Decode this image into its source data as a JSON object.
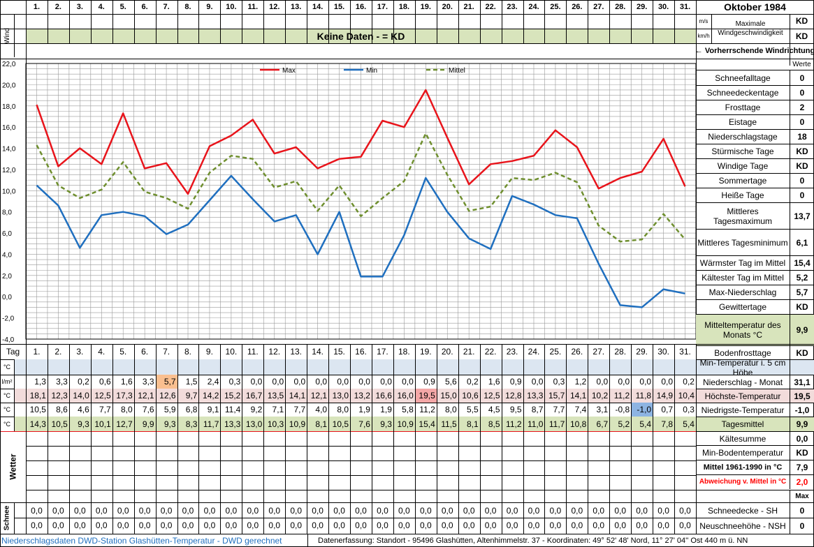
{
  "title": "Oktober 1984",
  "days": [
    "1.",
    "2.",
    "3.",
    "4.",
    "5.",
    "6.",
    "7.",
    "8.",
    "9.",
    "10.",
    "11.",
    "12.",
    "13.",
    "14.",
    "15.",
    "16.",
    "17.",
    "18.",
    "19.",
    "20.",
    "21.",
    "22.",
    "23.",
    "24.",
    "25.",
    "26.",
    "27.",
    "28.",
    "29.",
    "30.",
    "31."
  ],
  "wind": {
    "label": "Wind",
    "unit_ms": "m/s",
    "unit_kmh": "km/h",
    "banner": "Keine Daten -  = KD",
    "max_label": "Maximale Windgeschwindigkeit",
    "max_ms": "KD",
    "max_kmh": "KD",
    "direction_label": "← Vorherrschende Windrichtung"
  },
  "werte_label": "Werte",
  "tag_label": "Tag",
  "summary": [
    {
      "label": "Schneefalltage",
      "value": "0"
    },
    {
      "label": "Schneedeckentage",
      "value": "0"
    },
    {
      "label": "Frosttage",
      "value": "2"
    },
    {
      "label": "Eistage",
      "value": "0"
    },
    {
      "label": "Niederschlagstage",
      "value": "18"
    },
    {
      "label": "Stürmische Tage",
      "value": "KD"
    },
    {
      "label": "Windige Tage",
      "value": "KD"
    },
    {
      "label": "Sommertage",
      "value": "0"
    },
    {
      "label": "Heiße Tage",
      "value": "0"
    },
    {
      "label": "Mittleres Tagesmaximum",
      "value": "13,7"
    },
    {
      "label": "Mittleres Tagesminimum",
      "value": "6,1"
    },
    {
      "label": "Wärmster Tag im Mittel",
      "value": "15,4"
    },
    {
      "label": "Kältester Tag im Mittel",
      "value": "5,2"
    },
    {
      "label": "Max-Niederschlag",
      "value": "5,7"
    },
    {
      "label": "Gewittertage",
      "value": "KD"
    },
    {
      "label": "Mitteltemperatur des Monats °C",
      "value": "9,9"
    },
    {
      "label": "Bodenfrosttage",
      "value": "KD"
    }
  ],
  "rows": {
    "soil": {
      "unit": "°C",
      "label": "Min-Temperatur i. 5 cm Höhe",
      "values": [
        "",
        "",
        "",
        "",
        "",
        "",
        "",
        "",
        "",
        "",
        "",
        "",
        "",
        "",
        "",
        "",
        "",
        "",
        "",
        "",
        "",
        "",
        "",
        "",
        "",
        "",
        "",
        "",
        "",
        "",
        ""
      ],
      "summary": ""
    },
    "precip": {
      "unit": "l/m²",
      "label": "Niederschlag - Monat",
      "values": [
        "1,3",
        "3,3",
        "0,2",
        "0,6",
        "1,6",
        "3,3",
        "5,7",
        "1,5",
        "2,4",
        "0,3",
        "0,0",
        "0,0",
        "0,0",
        "0,0",
        "0,0",
        "0,0",
        "0,0",
        "0,0",
        "0,9",
        "5,6",
        "0,2",
        "1,6",
        "0,9",
        "0,0",
        "0,3",
        "1,2",
        "0,0",
        "0,0",
        "0,0",
        "0,0",
        "0,2"
      ],
      "summary": "31,1"
    },
    "max": {
      "unit": "°C",
      "label": "Höchste-Temperatur",
      "values": [
        "18,1",
        "12,3",
        "14,0",
        "12,5",
        "17,3",
        "12,1",
        "12,6",
        "9,7",
        "14,2",
        "15,2",
        "16,7",
        "13,5",
        "14,1",
        "12,1",
        "13,0",
        "13,2",
        "16,6",
        "16,0",
        "19,5",
        "15,0",
        "10,6",
        "12,5",
        "12,8",
        "13,3",
        "15,7",
        "14,1",
        "10,2",
        "11,2",
        "11,8",
        "14,9",
        "10,4"
      ],
      "summary": "19,5"
    },
    "min": {
      "unit": "°C",
      "label": "Niedrigste-Temperatur",
      "values": [
        "10,5",
        "8,6",
        "4,6",
        "7,7",
        "8,0",
        "7,6",
        "5,9",
        "6,8",
        "9,1",
        "11,4",
        "9,2",
        "7,1",
        "7,7",
        "4,0",
        "8,0",
        "1,9",
        "1,9",
        "5,8",
        "11,2",
        "8,0",
        "5,5",
        "4,5",
        "9,5",
        "8,7",
        "7,7",
        "7,4",
        "3,1",
        "-0,8",
        "-1,0",
        "0,7",
        "0,3"
      ],
      "summary": "-1,0"
    },
    "mean": {
      "unit": "°C",
      "label": "Tagesmittel",
      "values": [
        "14,3",
        "10,5",
        "9,3",
        "10,1",
        "12,7",
        "9,9",
        "9,3",
        "8,3",
        "11,7",
        "13,3",
        "13,0",
        "10,3",
        "10,9",
        "8,1",
        "10,5",
        "7,6",
        "9,3",
        "10,9",
        "15,4",
        "11,5",
        "8,1",
        "8,5",
        "11,2",
        "11,0",
        "11,7",
        "10,8",
        "6,7",
        "5,2",
        "5,4",
        "7,8",
        "5,4"
      ],
      "summary": "9,9"
    }
  },
  "lower_summary": [
    {
      "label": "Kältesumme",
      "value": "0,0"
    },
    {
      "label": "Min-Bodentemperatur",
      "value": "KD"
    },
    {
      "label": "Mittel 1961-1990 in °C",
      "value": "7,9"
    },
    {
      "label": "Abweichung v. Mittel in °C",
      "value": "2,0"
    }
  ],
  "max_label": "Max",
  "wetter_label": "Wetter",
  "schnee": {
    "label": "Schnee",
    "sh_values": [
      "0,0",
      "0,0",
      "0,0",
      "0,0",
      "0,0",
      "0,0",
      "0,0",
      "0,0",
      "0,0",
      "0,0",
      "0,0",
      "0,0",
      "0,0",
      "0,0",
      "0,0",
      "0,0",
      "0,0",
      "0,0",
      "0,0",
      "0,0",
      "0,0",
      "0,0",
      "0,0",
      "0,0",
      "0,0",
      "0,0",
      "0,0",
      "0,0",
      "0,0",
      "0,0",
      "0,0"
    ],
    "nsh_values": [
      "0,0",
      "0,0",
      "0,0",
      "0,0",
      "0,0",
      "0,0",
      "0,0",
      "0,0",
      "0,0",
      "0,0",
      "0,0",
      "0,0",
      "0,0",
      "0,0",
      "0,0",
      "0,0",
      "0,0",
      "0,0",
      "0,0",
      "0,0",
      "0,0",
      "0,0",
      "0,0",
      "0,0",
      "0,0",
      "0,0",
      "0,0",
      "0,0",
      "0,0",
      "0,0",
      "0,0"
    ],
    "sh_label": "Schneedecke -   SH",
    "sh_value": "0",
    "nsh_label": "Neuschneehöhe - NSH",
    "nsh_value": "0"
  },
  "footer": {
    "left": "Niederschlagsdaten DWD-Station Glashütten-Temperatur -  DWD gerechnet",
    "right": "Datenerfassung:  Standort -  95496  Glashütten, Altenhimmelstr. 37 - Koordinaten:  49° 52' 48' Nord,   11° 27' 04'' Ost   440 m ü. NN"
  },
  "colors": {
    "max": "#e8141b",
    "min": "#1f6fbf",
    "mean": "#6f8f2f",
    "banner": "#d8e4bc",
    "soil_row": "#dce6f1",
    "max_row": "#f2dcdb",
    "mean_row": "#d8e4bc",
    "highlight_orange": "#fabf8f",
    "highlight_red": "#f4a7a7",
    "highlight_blue": "#8db4e2",
    "deviation": "#ff0000"
  },
  "chart_data": {
    "type": "line",
    "x": [
      "1.",
      "2.",
      "3.",
      "4.",
      "5.",
      "6.",
      "7.",
      "8.",
      "9.",
      "10.",
      "11.",
      "12.",
      "13.",
      "14.",
      "15.",
      "16.",
      "17.",
      "18.",
      "19.",
      "20.",
      "21.",
      "22.",
      "23.",
      "24.",
      "25.",
      "26.",
      "27.",
      "28.",
      "29.",
      "30.",
      "31."
    ],
    "series": [
      {
        "name": "Max",
        "values": [
          18.1,
          12.3,
          14.0,
          12.5,
          17.3,
          12.1,
          12.6,
          9.7,
          14.2,
          15.2,
          16.7,
          13.5,
          14.1,
          12.1,
          13.0,
          13.2,
          16.6,
          16.0,
          19.5,
          15.0,
          10.6,
          12.5,
          12.8,
          13.3,
          15.7,
          14.1,
          10.2,
          11.2,
          11.8,
          14.9,
          10.4
        ]
      },
      {
        "name": "Min",
        "values": [
          10.5,
          8.6,
          4.6,
          7.7,
          8.0,
          7.6,
          5.9,
          6.8,
          9.1,
          11.4,
          9.2,
          7.1,
          7.7,
          4.0,
          8.0,
          1.9,
          1.9,
          5.8,
          11.2,
          8.0,
          5.5,
          4.5,
          9.5,
          8.7,
          7.7,
          7.4,
          3.1,
          -0.8,
          -1.0,
          0.7,
          0.3
        ]
      },
      {
        "name": "Mittel",
        "values": [
          14.3,
          10.5,
          9.3,
          10.1,
          12.7,
          9.9,
          9.3,
          8.3,
          11.7,
          13.3,
          13.0,
          10.3,
          10.9,
          8.1,
          10.5,
          7.6,
          9.3,
          10.9,
          15.4,
          11.5,
          8.1,
          8.5,
          11.2,
          11.0,
          11.7,
          10.8,
          6.7,
          5.2,
          5.4,
          7.8,
          5.4
        ]
      }
    ],
    "yticks": [
      "22,0",
      "20,0",
      "18,0",
      "16,0",
      "14,0",
      "12,0",
      "10,0",
      "8,0",
      "6,0",
      "4,0",
      "2,0",
      "0,0",
      "-2,0",
      "-4,0"
    ],
    "ylim": [
      -4,
      22
    ],
    "grid": true,
    "legend": "top"
  }
}
